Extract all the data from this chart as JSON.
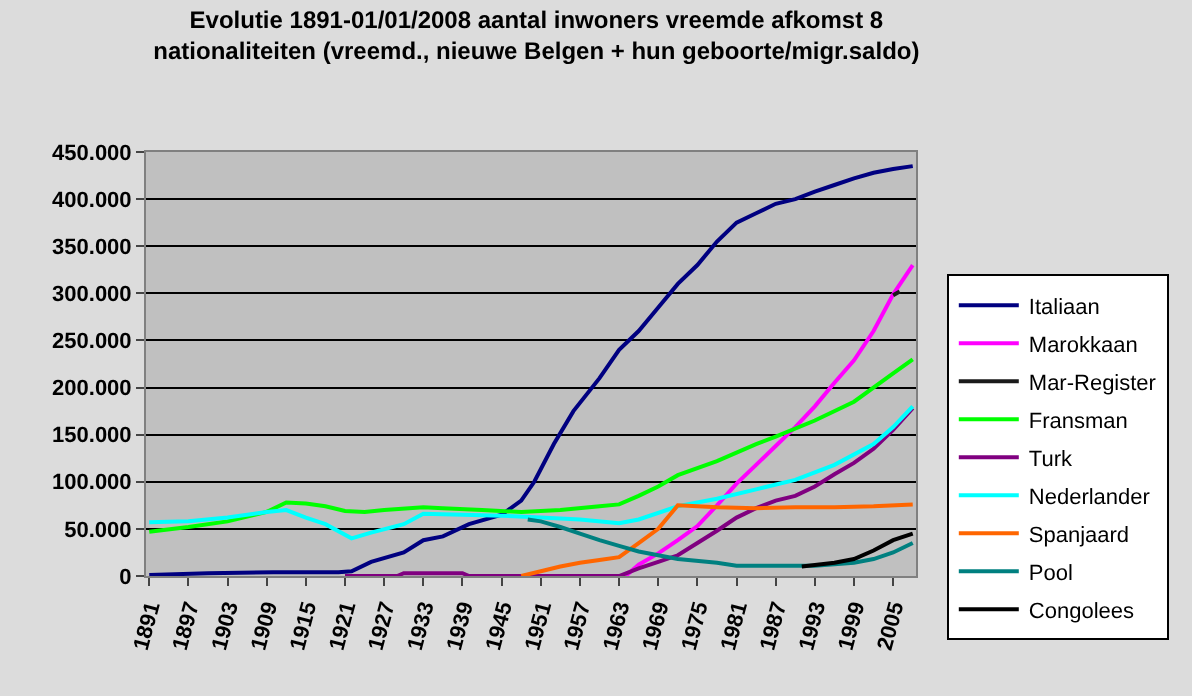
{
  "chart_data": {
    "type": "line",
    "title": "Evolutie 1891-01/01/2008 aantal inwoners vreemde afkomst 8 nationaliteiten (vreemd., nieuwe Belgen + hun geboorte/migr.saldo)",
    "xlim": [
      1890.5,
      2008.5
    ],
    "xticks": [
      1891,
      1897,
      1903,
      1909,
      1915,
      1921,
      1927,
      1933,
      1939,
      1945,
      1951,
      1957,
      1963,
      1969,
      1975,
      1981,
      1987,
      1993,
      1999,
      2005
    ],
    "ylim": [
      0,
      450000
    ],
    "yticks": [
      {
        "value": 0,
        "label": "0"
      },
      {
        "value": 50000,
        "label": "50.000"
      },
      {
        "value": 100000,
        "label": "100.000"
      },
      {
        "value": 150000,
        "label": "150.000"
      },
      {
        "value": 200000,
        "label": "200.000"
      },
      {
        "value": 250000,
        "label": "250.000"
      },
      {
        "value": 300000,
        "label": "300.000"
      },
      {
        "value": 350000,
        "label": "350.000"
      },
      {
        "value": 400000,
        "label": "400.000"
      },
      {
        "value": 450000,
        "label": "450.000"
      }
    ],
    "grid": "y",
    "legend": "right",
    "marker": "none",
    "line_style": "solid",
    "series": [
      {
        "name": "Italiaan",
        "color": "#000080",
        "x": [
          1891,
          1900,
          1910,
          1920,
          1922,
          1925,
          1930,
          1933,
          1936,
          1940,
          1945,
          1948,
          1950,
          1953,
          1956,
          1960,
          1963,
          1966,
          1969,
          1972,
          1975,
          1978,
          1981,
          1984,
          1987,
          1990,
          1993,
          1996,
          1999,
          2002,
          2005,
          2008
        ],
        "values": [
          1000,
          3000,
          4000,
          4000,
          5000,
          15000,
          25000,
          38000,
          42000,
          55000,
          65000,
          80000,
          100000,
          140000,
          175000,
          210000,
          240000,
          260000,
          285000,
          310000,
          330000,
          355000,
          375000,
          385000,
          395000,
          400000,
          408000,
          415000,
          422000,
          428000,
          432000,
          435000
        ]
      },
      {
        "name": "Marokkaan",
        "color": "#ff00ff",
        "x": [
          1964,
          1966,
          1969,
          1972,
          1975,
          1978,
          1981,
          1984,
          1987,
          1990,
          1993,
          1996,
          1999,
          2002,
          2005,
          2008
        ],
        "values": [
          0,
          12000,
          24000,
          38000,
          53000,
          75000,
          98000,
          118000,
          138000,
          158000,
          180000,
          205000,
          229000,
          260000,
          299000,
          330000
        ]
      },
      {
        "name": "Mar-Register",
        "color": "#1a1a1a",
        "x": [
          2005,
          2006
        ],
        "values": [
          298000,
          302000
        ]
      },
      {
        "name": "Fransman",
        "color": "#00ff00",
        "x": [
          1891,
          1897,
          1903,
          1909,
          1912,
          1915,
          1918,
          1921,
          1924,
          1927,
          1933,
          1936,
          1942,
          1948,
          1954,
          1960,
          1963,
          1966,
          1969,
          1972,
          1978,
          1984,
          1987,
          1993,
          1999,
          2005,
          2008
        ],
        "values": [
          47000,
          52000,
          58000,
          68000,
          78000,
          77000,
          74000,
          69000,
          68000,
          70000,
          73000,
          72000,
          70000,
          68000,
          70000,
          74000,
          76000,
          85000,
          95000,
          107000,
          122000,
          140000,
          148000,
          165000,
          185000,
          215000,
          230000
        ]
      },
      {
        "name": "Turk",
        "color": "#800080",
        "x": [
          1921,
          1929,
          1930,
          1939,
          1940,
          1963,
          1966,
          1969,
          1972,
          1975,
          1978,
          1981,
          1984,
          1987,
          1990,
          1993,
          1996,
          1999,
          2002,
          2005,
          2008
        ],
        "values": [
          0,
          0,
          3000,
          3000,
          0,
          0,
          8000,
          15000,
          22000,
          35000,
          48000,
          62000,
          72000,
          80000,
          85000,
          95000,
          108000,
          120000,
          135000,
          155000,
          178000
        ]
      },
      {
        "name": "Nederlander",
        "color": "#00ffff",
        "x": [
          1891,
          1897,
          1903,
          1909,
          1912,
          1915,
          1918,
          1922,
          1925,
          1930,
          1933,
          1939,
          1945,
          1951,
          1957,
          1963,
          1966,
          1972,
          1978,
          1984,
          1990,
          1996,
          2002,
          2005,
          2008
        ],
        "values": [
          57000,
          58000,
          62000,
          68000,
          70000,
          62000,
          55000,
          40000,
          46000,
          55000,
          66000,
          65000,
          64000,
          62000,
          60000,
          56000,
          60000,
          74000,
          82000,
          92000,
          102000,
          118000,
          140000,
          158000,
          180000
        ]
      },
      {
        "name": "Spanjaard",
        "color": "#ff6600",
        "x": [
          1948,
          1951,
          1954,
          1957,
          1960,
          1963,
          1966,
          1969,
          1972,
          1975,
          1978,
          1984,
          1990,
          1996,
          2002,
          2008
        ],
        "values": [
          0,
          5000,
          10000,
          14000,
          17000,
          20000,
          35000,
          50000,
          75000,
          74000,
          73000,
          72000,
          73000,
          73000,
          74000,
          76000
        ]
      },
      {
        "name": "Pool",
        "color": "#008080",
        "x": [
          1949,
          1951,
          1954,
          1957,
          1960,
          1963,
          1966,
          1969,
          1972,
          1978,
          1981,
          1987,
          1993,
          1999,
          2002,
          2005,
          2008
        ],
        "values": [
          60000,
          58000,
          52000,
          45000,
          38000,
          32000,
          26000,
          22000,
          18000,
          14000,
          11000,
          11000,
          11000,
          14000,
          18000,
          25000,
          35000
        ]
      },
      {
        "name": "Congolees",
        "color": "#000000",
        "x": [
          1991,
          1996,
          1999,
          2002,
          2005,
          2008
        ],
        "values": [
          10000,
          14000,
          18000,
          27000,
          38000,
          45000
        ]
      }
    ]
  }
}
